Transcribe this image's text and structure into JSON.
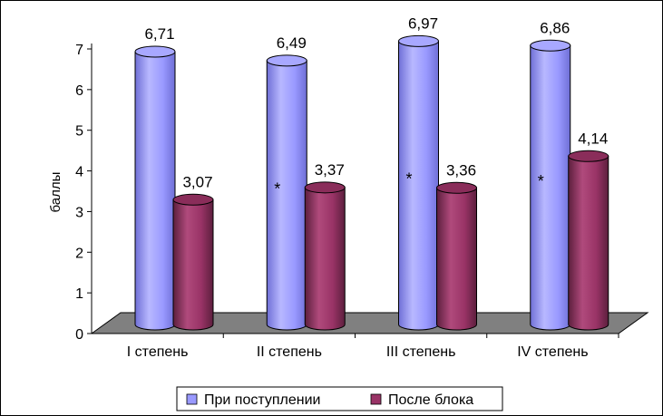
{
  "chart_data": {
    "type": "bar",
    "ylabel": "баллы",
    "xlabel": "",
    "ylim": [
      0,
      7
    ],
    "yticks": [
      0,
      1,
      2,
      3,
      4,
      5,
      6,
      7
    ],
    "categories": [
      "I степень",
      "II степень",
      "III степень",
      "IV степень"
    ],
    "series": [
      {
        "name": "При поступлении",
        "values": [
          6.71,
          6.49,
          6.97,
          6.86
        ],
        "labels": [
          "6,71",
          "6,49",
          "6,97",
          "6,86"
        ],
        "color": "#9999ff"
      },
      {
        "name": "После блока",
        "values": [
          3.07,
          3.37,
          3.36,
          4.14
        ],
        "labels": [
          "3,07",
          "3,37",
          "3,36",
          "4,14"
        ],
        "color": "#993366"
      }
    ],
    "annotations": [
      "",
      "*",
      "*",
      "*"
    ],
    "legend_position": "bottom",
    "grid": false,
    "style": "3d-cylinder"
  }
}
